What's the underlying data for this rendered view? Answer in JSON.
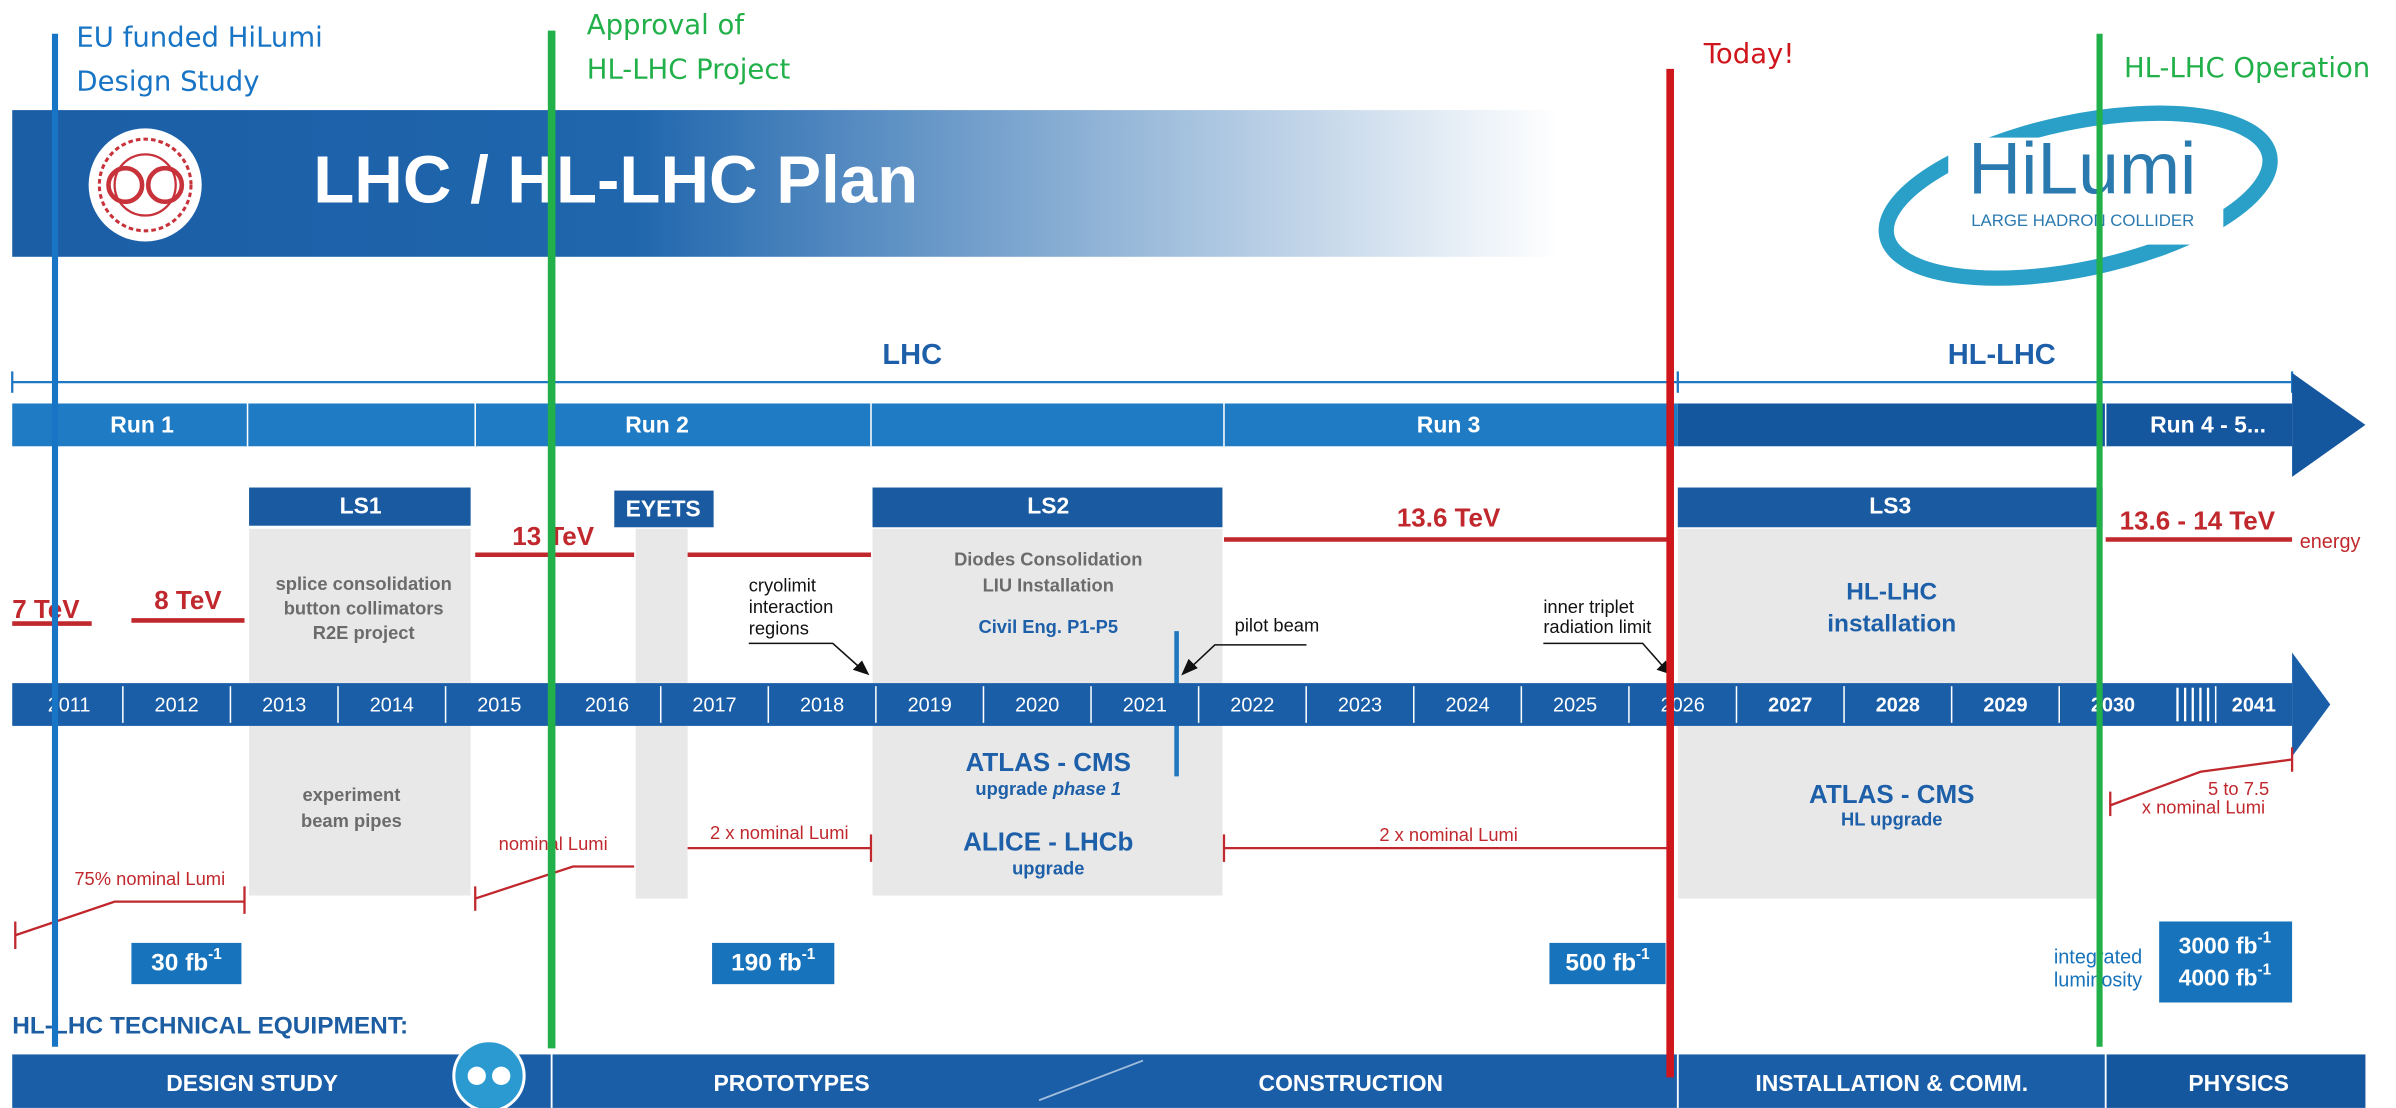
{
  "annotations": {
    "eu": [
      "EU funded HiLumi",
      "Design Study"
    ],
    "approval": [
      "Approval of",
      "HL-LHC Project"
    ],
    "today": "Today!",
    "operation": "HL-LHC Operation"
  },
  "header": {
    "title": "LHC / HL-LHC Plan",
    "logo": "HiLumi",
    "logo_sub": "LARGE HADRON COLLIDER"
  },
  "eras": [
    "LHC",
    "HL-LHC"
  ],
  "runs": [
    "Run 1",
    "Run 2",
    "Run 3",
    "Run 4 - 5..."
  ],
  "shutdowns": [
    "LS1",
    "EYETS",
    "LS2",
    "LS3"
  ],
  "energies": [
    "7 TeV",
    "8 TeV",
    "13 TeV",
    "13.6 TeV",
    "13.6 - 14 TeV"
  ],
  "energy_label": "energy",
  "ls1": {
    "machine": [
      "splice consolidation",
      "button collimators",
      "R2E project"
    ],
    "experiments": [
      "experiment",
      "beam pipes"
    ]
  },
  "ls2": {
    "machine": [
      "Diodes Consolidation",
      "LIU Installation"
    ],
    "civil": "Civil Eng. P1-P5",
    "atlas": "ATLAS - CMS",
    "atlas_sub": "upgrade ",
    "atlas_sub_italic": "phase 1",
    "alice": "ALICE - LHCb",
    "alice_sub": "upgrade"
  },
  "ls3": {
    "machine": [
      "HL-LHC",
      "installation"
    ],
    "atlas": "ATLAS - CMS",
    "atlas_sub": "HL upgrade"
  },
  "notes": {
    "cryolimit": [
      "cryolimit",
      "interaction",
      "regions"
    ],
    "pilot": "pilot beam",
    "triplet": [
      "inner triplet",
      "radiation limit"
    ]
  },
  "years": [
    2011,
    2012,
    2013,
    2014,
    2015,
    2016,
    2017,
    2018,
    2019,
    2020,
    2021,
    2022,
    2023,
    2024,
    2025,
    2026,
    2027,
    2028,
    2029,
    2030,
    2041
  ],
  "lumi": [
    "75% nominal Lumi",
    "nominal Lumi",
    "2 x nominal Lumi",
    "2 x nominal Lumi"
  ],
  "lumi_hl": [
    "5 to 7.5",
    "x nominal Lumi"
  ],
  "integrated": [
    {
      "base": "30 fb",
      "sup": "-1"
    },
    {
      "base": "190 fb",
      "sup": "-1"
    },
    {
      "base": "500 fb",
      "sup": "-1"
    }
  ],
  "integrated_hl": [
    {
      "base": "3000 fb",
      "sup": "-1"
    },
    {
      "base": "4000 fb",
      "sup": "-1"
    }
  ],
  "integrated_label": [
    "integrated",
    "luminosity"
  ],
  "equipment": {
    "title": "HL-LHC TECHNICAL EQUIPMENT:",
    "phases": [
      "DESIGN STUDY",
      "PROTOTYPES",
      "CONSTRUCTION",
      "INSTALLATION & COMM.",
      "PHYSICS"
    ]
  }
}
